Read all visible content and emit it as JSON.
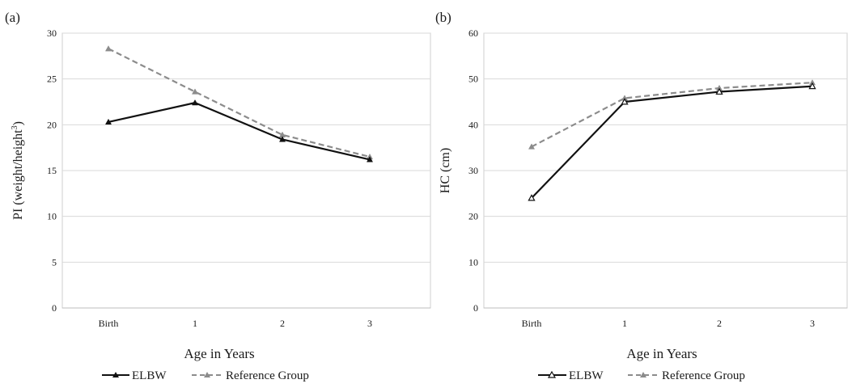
{
  "chart_data": [
    {
      "type": "line",
      "panel_label": "(a)",
      "categories": [
        "Birth",
        "1",
        "2",
        "3"
      ],
      "ylabel": "PI (weight/height³)",
      "ylabel_main": "PI (weight/height",
      "ylabel_sup": "3",
      "ylabel_close": ")",
      "xlabel": "Age in Years",
      "ylim": [
        0,
        30
      ],
      "yticks": [
        "0",
        "5",
        "10",
        "15",
        "20",
        "25",
        "30"
      ],
      "grid": true,
      "legend_position": "bottom",
      "series": [
        {
          "name": "ELBW",
          "values": [
            20.3,
            22.4,
            18.4,
            16.2
          ],
          "color": "#111111",
          "dash": "solid",
          "marker": "triangle"
        },
        {
          "name": "Reference Group",
          "values": [
            28.3,
            23.6,
            18.9,
            16.5
          ],
          "color": "#8c8c8c",
          "dash": "dashed",
          "marker": "triangle"
        }
      ]
    },
    {
      "type": "line",
      "panel_label": "(b)",
      "categories": [
        "Birth",
        "1",
        "2",
        "3"
      ],
      "ylabel": "HC (cm)",
      "xlabel": "Age in Years",
      "ylim": [
        0,
        60
      ],
      "yticks": [
        "0",
        "10",
        "20",
        "30",
        "40",
        "50",
        "60"
      ],
      "grid": true,
      "legend_position": "bottom",
      "series": [
        {
          "name": "ELBW",
          "values": [
            24.0,
            45.0,
            47.2,
            48.4
          ],
          "color": "#111111",
          "dash": "solid",
          "marker": "triangle"
        },
        {
          "name": "Reference Group",
          "values": [
            35.2,
            45.8,
            48.0,
            49.2
          ],
          "color": "#8c8c8c",
          "dash": "dashed",
          "marker": "triangle"
        }
      ]
    }
  ]
}
